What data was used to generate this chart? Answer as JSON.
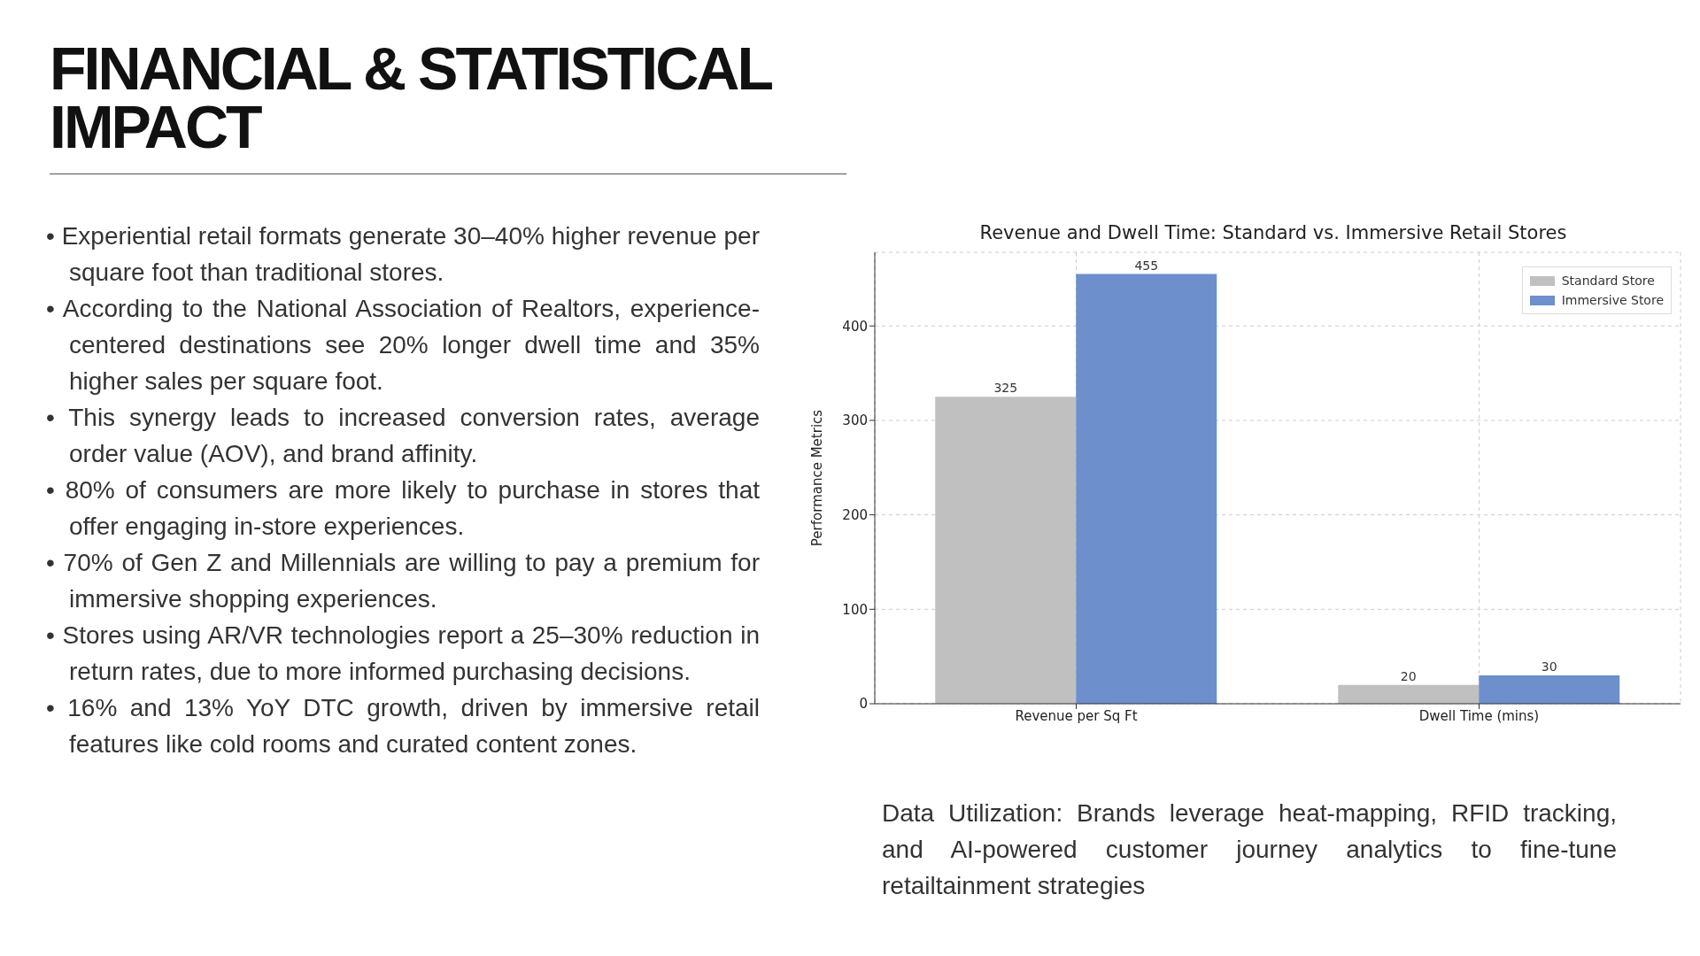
{
  "chart_data": {
    "type": "bar",
    "title": "Revenue and Dwell Time: Standard vs. Immersive Retail Stores",
    "ylabel": "Performance Metrics",
    "categories": [
      "Revenue per Sq Ft",
      "Dwell Time (mins)"
    ],
    "series": [
      {
        "name": "Standard Store",
        "color": "#c0c0c0",
        "values": [
          325,
          20
        ]
      },
      {
        "name": "Immersive Store",
        "color": "#6d8fcc",
        "values": [
          455,
          30
        ]
      }
    ],
    "ylim": [
      0,
      478
    ],
    "yticks": [
      0,
      100,
      200,
      300,
      400
    ],
    "grid": true,
    "legend": "top right",
    "data_labels": true,
    "annotations": [
      "FINANCIAL & STATISTICAL IMPACT",
      "• Experiential retail formats generate 30–40% higher revenue per square foot than traditional stores.",
      "• According to the National Association of Realtors, experience-centered destinations see 20% longer dwell time and 35% higher sales per square foot.",
      "• This synergy leads to increased conversion rates, average order value (AOV), and brand affinity.",
      "• 80% of consumers are more likely to purchase in stores that offer engaging in-store experiences.",
      "• 70% of Gen Z and Millennials are willing to pay a premium for immersive shopping experiences.",
      "• Stores using AR/VR technologies report a 25–30% reduction in return rates, due to more informed purchasing decisions.",
      "• 16% and 13% YoY DTC growth, driven by immersive retail features like cold rooms and curated content zones.",
      "Data Utilization: Brands leverage heat-mapping, RFID tracking, and AI-powered customer journey analytics to fine-tune retailtainment strategies"
    ]
  }
}
